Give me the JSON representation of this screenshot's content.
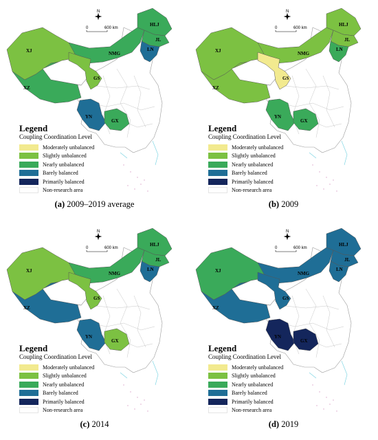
{
  "legend": {
    "title": "Legend",
    "subtitle": "Coupling Coordination Level",
    "classes": [
      {
        "id": "moderately_unbalanced",
        "label": "Moderately unbalanced",
        "color": "#f2ea8f"
      },
      {
        "id": "slightly_unbalanced",
        "label": "Slightly unbalanced",
        "color": "#7cc142"
      },
      {
        "id": "nearly_unbalanced",
        "label": "Nearly unbalanced",
        "color": "#3aaa5a"
      },
      {
        "id": "barely_balanced",
        "label": "Barely balanced",
        "color": "#1f6e96"
      },
      {
        "id": "primarily_balanced",
        "label": "Primarily balanced",
        "color": "#14265c"
      },
      {
        "id": "non_research",
        "label": "Non-research area",
        "color": "#ffffff"
      }
    ]
  },
  "scale": {
    "zero": "0",
    "distance": "600 km"
  },
  "north_label": "N",
  "panels": [
    {
      "caption_letter": "(a)",
      "caption_text": " 2009–2019 average",
      "regions": {
        "XJ": "slightly_unbalanced",
        "XZ": "nearly_unbalanced",
        "NMG": "nearly_unbalanced",
        "HLJ": "nearly_unbalanced",
        "JL": "nearly_unbalanced",
        "LN": "barely_balanced",
        "GS": "slightly_unbalanced",
        "YN": "barely_balanced",
        "GX": "nearly_unbalanced"
      }
    },
    {
      "caption_letter": "(b)",
      "caption_text": " 2009",
      "regions": {
        "XJ": "slightly_unbalanced",
        "XZ": "slightly_unbalanced",
        "NMG": "slightly_unbalanced",
        "HLJ": "slightly_unbalanced",
        "JL": "slightly_unbalanced",
        "LN": "nearly_unbalanced",
        "GS": "moderately_unbalanced",
        "YN": "nearly_unbalanced",
        "GX": "nearly_unbalanced"
      }
    },
    {
      "caption_letter": "(c)",
      "caption_text": " 2014",
      "regions": {
        "XJ": "slightly_unbalanced",
        "XZ": "barely_balanced",
        "NMG": "nearly_unbalanced",
        "HLJ": "nearly_unbalanced",
        "JL": "nearly_unbalanced",
        "LN": "barely_balanced",
        "GS": "slightly_unbalanced",
        "YN": "barely_balanced",
        "GX": "slightly_unbalanced"
      }
    },
    {
      "caption_letter": "(d)",
      "caption_text": " 2019",
      "regions": {
        "XJ": "nearly_unbalanced",
        "XZ": "barely_balanced",
        "NMG": "barely_balanced",
        "HLJ": "barely_balanced",
        "JL": "barely_balanced",
        "LN": "barely_balanced",
        "GS": "barely_balanced",
        "YN": "primarily_balanced",
        "GX": "primarily_balanced"
      }
    }
  ],
  "region_labels": {
    "XJ": "XJ",
    "XZ": "XZ",
    "NMG": "NMG",
    "HLJ": "HLJ",
    "JL": "JL",
    "LN": "LN",
    "GS": "GS",
    "YN": "YN",
    "GX": "GX"
  }
}
